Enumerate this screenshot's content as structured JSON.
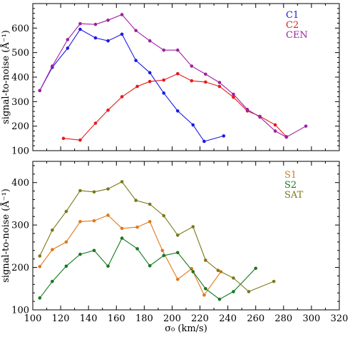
{
  "chart_data": [
    {
      "type": "line",
      "xlabel": "",
      "ylabel": "signal-to-noise (Å⁻¹)",
      "xlim": [
        100,
        320
      ],
      "ylim": [
        100,
        700
      ],
      "x_ticks": [],
      "y_ticks": [
        "100",
        "200",
        "300",
        "400",
        "500",
        "600"
      ],
      "legend_position": "top-right",
      "series": [
        {
          "name": "C1",
          "color": "#1a1ae6",
          "points": [
            [
              105,
              345
            ],
            [
              114,
              440
            ],
            [
              125,
              518
            ],
            [
              134,
              595
            ],
            [
              145,
              560
            ],
            [
              154,
              548
            ],
            [
              164,
              575
            ],
            [
              174,
              468
            ],
            [
              184,
              418
            ],
            [
              194,
              335
            ],
            [
              204,
              262
            ],
            [
              215,
              205
            ],
            [
              223,
              138
            ],
            [
              237,
              160
            ]
          ]
        },
        {
          "name": "C2",
          "color": "#e61a1a",
          "points": [
            [
              122,
              150
            ],
            [
              134,
              143
            ],
            [
              145,
              212
            ],
            [
              154,
              265
            ],
            [
              164,
              320
            ],
            [
              175,
              362
            ],
            [
              184,
              382
            ],
            [
              194,
              388
            ],
            [
              204,
              414
            ],
            [
              214,
              385
            ],
            [
              224,
              380
            ],
            [
              234,
              362
            ],
            [
              244,
              318
            ],
            [
              254,
              262
            ],
            [
              263,
              240
            ],
            [
              274,
              205
            ],
            [
              282,
              157
            ]
          ]
        },
        {
          "name": "CEN",
          "color": "#a020a0",
          "points": [
            [
              105,
              345
            ],
            [
              114,
              445
            ],
            [
              125,
              553
            ],
            [
              134,
              618
            ],
            [
              145,
              615
            ],
            [
              154,
              632
            ],
            [
              164,
              655
            ],
            [
              174,
              590
            ],
            [
              184,
              548
            ],
            [
              194,
              510
            ],
            [
              204,
              510
            ],
            [
              214,
              445
            ],
            [
              224,
              412
            ],
            [
              234,
              378
            ],
            [
              244,
              330
            ],
            [
              254,
              268
            ],
            [
              263,
              237
            ],
            [
              274,
              180
            ],
            [
              282,
              155
            ],
            [
              296,
              200
            ]
          ]
        }
      ]
    },
    {
      "type": "line",
      "xlabel": "σ₀ (km/s)",
      "ylabel": "signal-to-noise (Å⁻¹)",
      "xlim": [
        100,
        320
      ],
      "ylim": [
        100,
        450
      ],
      "x_ticks": [
        "100",
        "120",
        "140",
        "160",
        "180",
        "200",
        "220",
        "240",
        "260",
        "280",
        "300",
        "320"
      ],
      "y_ticks": [
        "100",
        "200",
        "300",
        "400"
      ],
      "legend_position": "top-right",
      "series": [
        {
          "name": "S1",
          "color": "#e07818",
          "points": [
            [
              105,
              202
            ],
            [
              114,
              242
            ],
            [
              124,
              260
            ],
            [
              134,
              308
            ],
            [
              144,
              310
            ],
            [
              154,
              323
            ],
            [
              164,
              292
            ],
            [
              175,
              295
            ],
            [
              184,
              308
            ],
            [
              193,
              240
            ],
            [
              204,
              172
            ],
            [
              214,
              197
            ],
            [
              223,
              135
            ],
            [
              235,
              190
            ]
          ]
        },
        {
          "name": "S2",
          "color": "#18781e",
          "points": [
            [
              105,
              128
            ],
            [
              114,
              167
            ],
            [
              124,
              203
            ],
            [
              134,
              231
            ],
            [
              144,
              240
            ],
            [
              154,
              203
            ],
            [
              164,
              269
            ],
            [
              175,
              244
            ],
            [
              184,
              204
            ],
            [
              194,
              228
            ],
            [
              204,
              235
            ],
            [
              215,
              190
            ],
            [
              224,
              150
            ],
            [
              234,
              125
            ],
            [
              244,
              143
            ],
            [
              260,
              198
            ]
          ]
        },
        {
          "name": "SAT",
          "color": "#7a7818",
          "points": [
            [
              105,
              227
            ],
            [
              114,
              288
            ],
            [
              124,
              332
            ],
            [
              134,
              381
            ],
            [
              144,
              378
            ],
            [
              154,
              385
            ],
            [
              164,
              402
            ],
            [
              174,
              358
            ],
            [
              184,
              349
            ],
            [
              194,
              322
            ],
            [
              204,
              276
            ],
            [
              215,
              296
            ],
            [
              224,
              217
            ],
            [
              233,
              193
            ],
            [
              244,
              175
            ],
            [
              255,
              143
            ],
            [
              273,
              167
            ]
          ]
        }
      ]
    }
  ]
}
